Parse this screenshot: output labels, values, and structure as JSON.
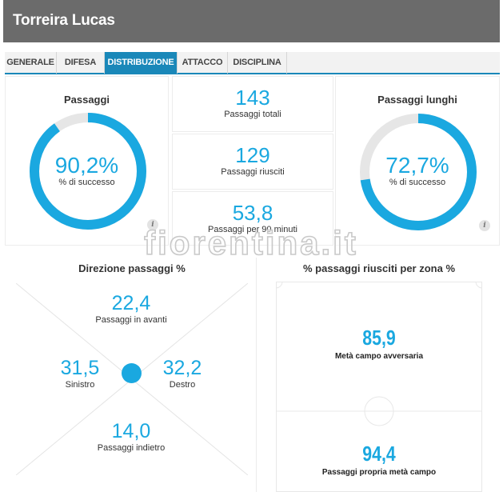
{
  "player": {
    "name": "Torreira Lucas"
  },
  "tabs": [
    {
      "label": "GENERALE",
      "active": false
    },
    {
      "label": "DIFESA",
      "active": false
    },
    {
      "label": "DISTRIBUZIONE",
      "active": true
    },
    {
      "label": "ATTACCO",
      "active": false
    },
    {
      "label": "DISCIPLINA",
      "active": false
    }
  ],
  "passaggi": {
    "title": "Passaggi",
    "value": "90,2%",
    "label": "% di successo",
    "percent": 90.2
  },
  "passaggi_lunghi": {
    "title": "Passaggi lunghi",
    "value": "72,7%",
    "label": "% di successo",
    "percent": 72.7
  },
  "stats": [
    {
      "value": "143",
      "label": "Passaggi totali"
    },
    {
      "value": "129",
      "label": "Passaggi riusciti"
    },
    {
      "value": "53,8",
      "label": "Passaggi per 90 minuti"
    }
  ],
  "watermark": "fiorentina.it",
  "direzione": {
    "title": "Direzione passaggi %",
    "avanti": {
      "value": "22,4",
      "label": "Passaggi in avanti"
    },
    "sinistro": {
      "value": "31,5",
      "label": "Sinistro"
    },
    "destro": {
      "value": "32,2",
      "label": "Destro"
    },
    "indietro": {
      "value": "14,0",
      "label": "Passaggi indietro"
    }
  },
  "zona": {
    "title": "% passaggi riusciti per zona %",
    "avversaria": {
      "value": "85,9",
      "label": "Metà campo avversaria"
    },
    "propria": {
      "value": "94,4",
      "label": "Passaggi propria metà campo"
    }
  },
  "colors": {
    "accent": "#1aa8e0",
    "track": "#e6e6e6",
    "tab_active": "#1a88b9",
    "header": "#6b6b6b"
  }
}
